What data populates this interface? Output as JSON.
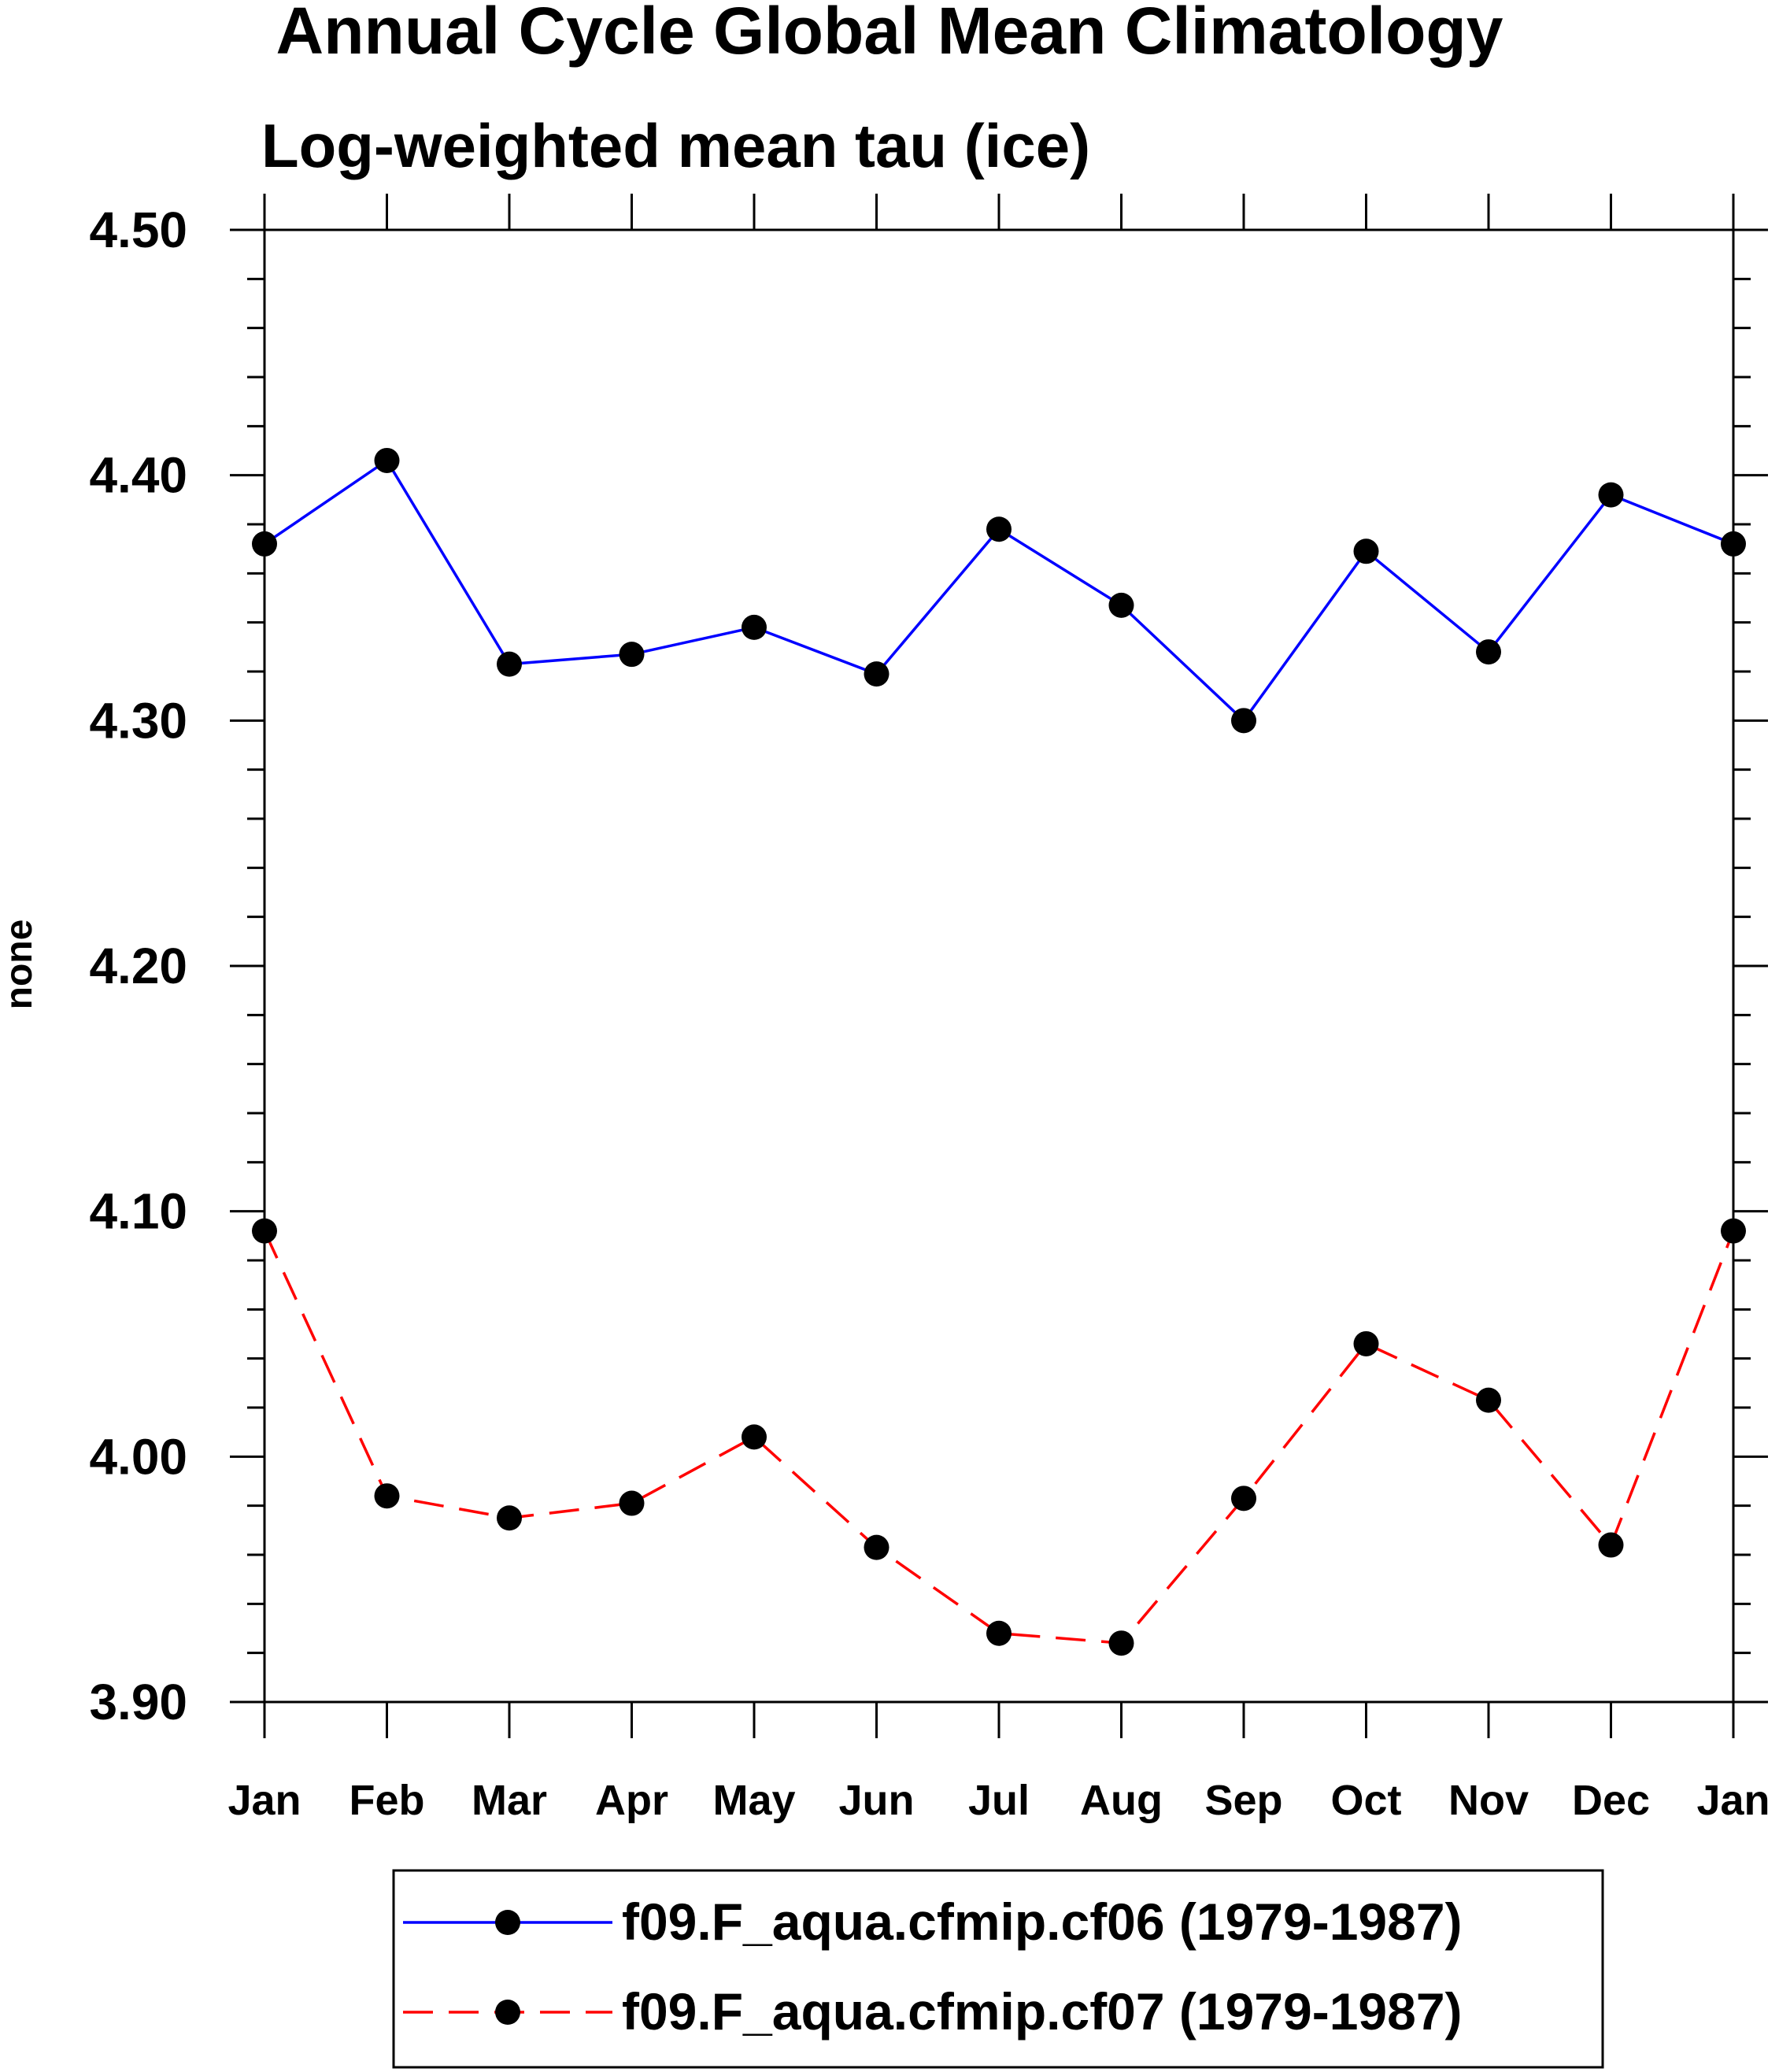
{
  "chart_data": {
    "type": "line",
    "title": "Annual Cycle Global Mean Climatology",
    "subtitle": "Log-weighted mean tau (ice)",
    "xlabel": "",
    "ylabel": "none",
    "categories": [
      "Jan",
      "Feb",
      "Mar",
      "Apr",
      "May",
      "Jun",
      "Jul",
      "Aug",
      "Sep",
      "Oct",
      "Nov",
      "Dec",
      "Jan"
    ],
    "ylim": [
      3.9,
      4.5
    ],
    "yticks": [
      "4.50",
      "4.40",
      "4.30",
      "4.20",
      "4.10",
      "4.00",
      "3.90"
    ],
    "ytick_values": [
      4.5,
      4.4,
      4.3,
      4.2,
      4.1,
      4.0,
      3.9
    ],
    "grid": false,
    "legend_position": "bottom-center",
    "series": [
      {
        "name": "f09.F_aqua.cfmip.cf06 (1979-1987)",
        "color": "#0000ff",
        "dash": "solid",
        "values": [
          4.372,
          4.406,
          4.323,
          4.327,
          4.338,
          4.319,
          4.378,
          4.347,
          4.3,
          4.369,
          4.328,
          4.392,
          4.372
        ]
      },
      {
        "name": "f09.F_aqua.cfmip.cf07 (1979-1987)",
        "color": "#ff0000",
        "dash": "dashed",
        "values": [
          4.092,
          3.984,
          3.975,
          3.981,
          4.008,
          3.963,
          3.928,
          3.924,
          3.983,
          4.046,
          4.023,
          3.964,
          4.092
        ]
      }
    ]
  }
}
